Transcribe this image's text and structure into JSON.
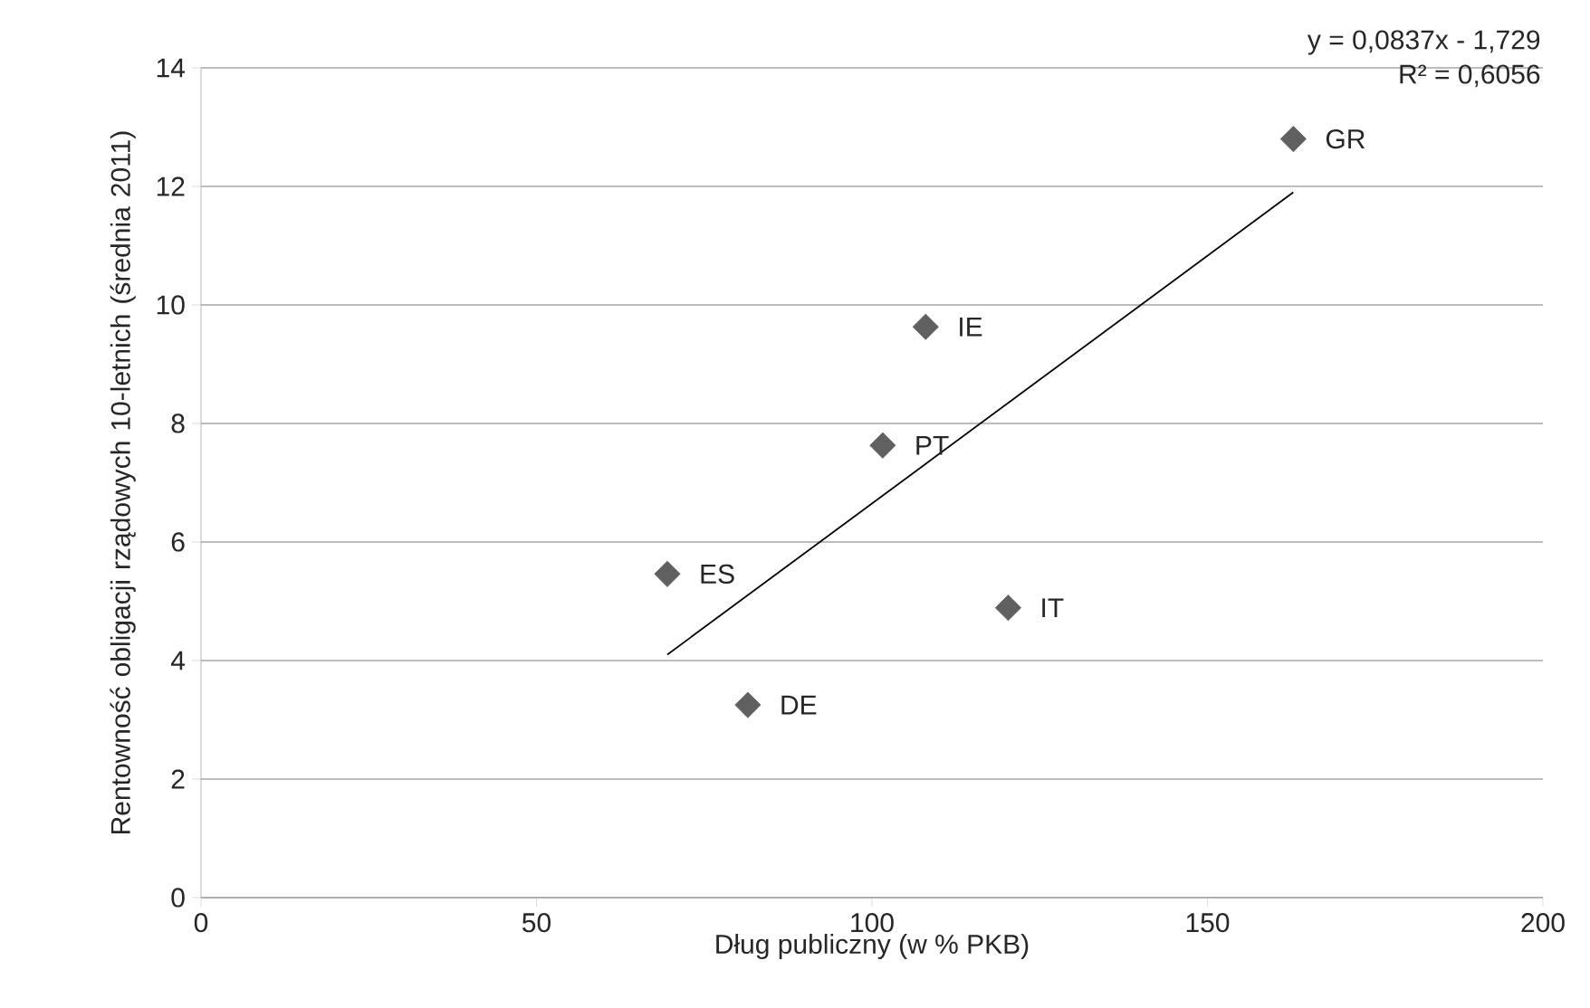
{
  "chart_data": {
    "type": "scatter",
    "xlabel": "Dług publiczny (w % PKB)",
    "ylabel": "Rentowność obligacji rządowych 10-letnich (średnia 2011)",
    "xlim": [
      0,
      200
    ],
    "xticks": [
      0,
      50,
      100,
      150,
      200
    ],
    "ylim": [
      0,
      14
    ],
    "yticks": [
      0,
      2,
      4,
      6,
      8,
      10,
      12,
      14
    ],
    "grid": "y",
    "series": [
      {
        "marker": "diamond",
        "color": "#606060",
        "x": [
          162.8,
          108.0,
          101.6,
          69.5,
          120.3,
          81.5
        ],
        "values": [
          12.8,
          9.63,
          7.63,
          5.46,
          4.89,
          3.25
        ]
      },
      {
        "type": "line",
        "marker": "none",
        "color": "#000000",
        "x": [
          69.5,
          162.8
        ],
        "values": [
          4.1,
          11.9
        ]
      }
    ],
    "annotations": [
      {
        "text": "GR",
        "x": 162.8,
        "y": 12.8
      },
      {
        "text": "IE",
        "x": 108.0,
        "y": 9.63
      },
      {
        "text": "PT",
        "x": 101.6,
        "y": 7.63
      },
      {
        "text": "ES",
        "x": 69.5,
        "y": 5.46
      },
      {
        "text": "IT",
        "x": 120.3,
        "y": 4.89
      },
      {
        "text": "DE",
        "x": 81.5,
        "y": 3.25
      },
      "y = 0,0837x - 1,729",
      "R² = 0,6056"
    ]
  }
}
